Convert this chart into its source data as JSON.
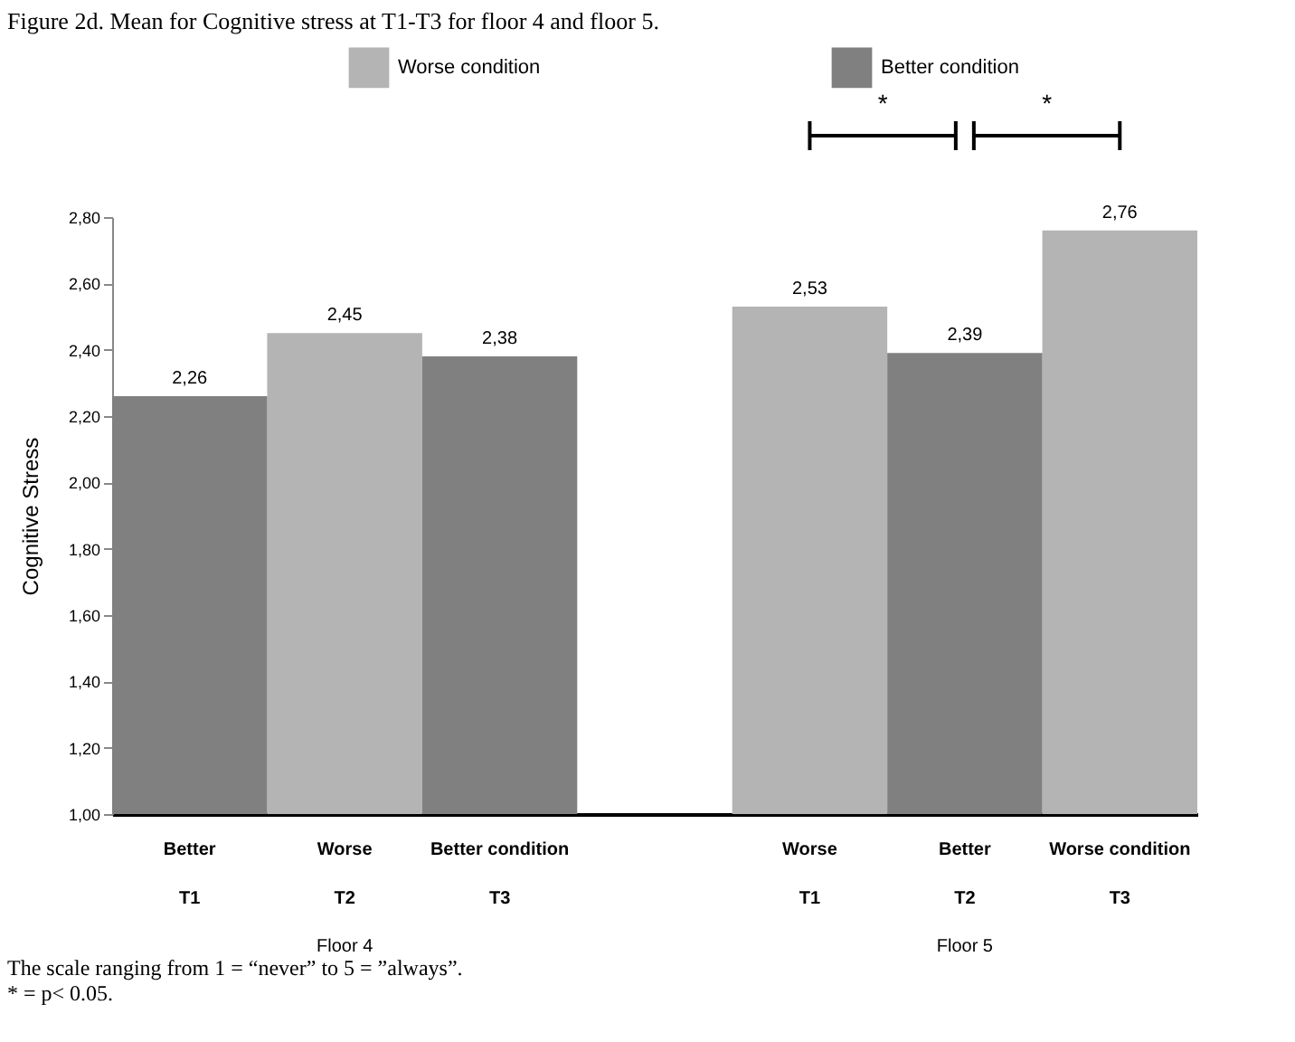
{
  "chart_data": {
    "type": "bar",
    "title": "Figure 2d. Mean for Cognitive stress at T1-T3 for floor 4 and floor 5.",
    "ylabel": "Cognitive Stress",
    "categories": [
      "Better\nT1",
      "Worse\nT2",
      "Better condition\nT3",
      "Worse\nT1",
      "Better\nT2",
      "Worse condition\nT3"
    ],
    "series": [
      {
        "name": "Worse condition",
        "color": "#b4b4b4",
        "values": [
          null,
          2.45,
          null,
          2.53,
          null,
          2.76
        ],
        "value_labels": [
          null,
          "2,45",
          null,
          "2,53",
          null,
          "2,76"
        ]
      },
      {
        "name": "Better condition",
        "color": "#808080",
        "values": [
          2.26,
          null,
          2.38,
          null,
          2.39,
          null
        ],
        "value_labels": [
          "2,26",
          null,
          "2,38",
          null,
          "2,39",
          null
        ]
      }
    ],
    "ylim": [
      1,
      2.8
    ],
    "yticks": [
      {
        "value": 1,
        "label": "1,00"
      },
      {
        "value": 1.2,
        "label": "1,20"
      },
      {
        "value": 1.4,
        "label": "1,40"
      },
      {
        "value": 1.6,
        "label": "1,60"
      },
      {
        "value": 1.8,
        "label": "1,80"
      },
      {
        "value": 2,
        "label": "2,00"
      },
      {
        "value": 2.2,
        "label": "2,20"
      },
      {
        "value": 2.4,
        "label": "2,40"
      },
      {
        "value": 2.6,
        "label": "2,60"
      },
      {
        "value": 2.8,
        "label": "2,80"
      }
    ],
    "grid": false,
    "legend": "top",
    "annotations": [
      "*",
      "*",
      "Floor 4",
      "Floor 5",
      "The scale ranging from 1 = “never” to 5 = ”always”.",
      "* = p< 0.05."
    ]
  }
}
